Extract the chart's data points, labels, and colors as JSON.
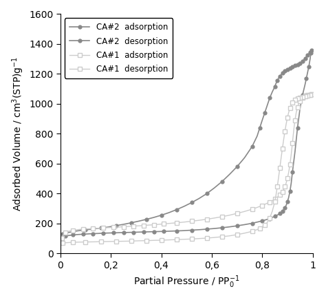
{
  "ca2_adsorption_x": [
    0.005,
    0.01,
    0.02,
    0.03,
    0.05,
    0.07,
    0.09,
    0.11,
    0.13,
    0.15,
    0.17,
    0.19,
    0.21,
    0.23,
    0.25,
    0.27,
    0.29,
    0.31,
    0.33,
    0.35,
    0.37,
    0.39,
    0.41,
    0.43,
    0.46,
    0.49,
    0.52,
    0.55,
    0.58,
    0.61,
    0.64,
    0.67,
    0.7,
    0.73,
    0.76,
    0.78,
    0.8,
    0.82,
    0.83,
    0.84,
    0.85,
    0.86,
    0.87,
    0.875,
    0.88,
    0.885,
    0.89,
    0.895,
    0.9,
    0.905,
    0.91,
    0.915,
    0.92,
    0.93,
    0.94,
    0.95,
    0.96,
    0.97,
    0.975,
    0.98,
    0.985,
    0.99,
    0.993,
    0.995
  ],
  "ca2_adsorption_y": [
    95,
    105,
    115,
    120,
    124,
    127,
    129,
    131,
    133,
    134,
    136,
    137,
    138,
    139,
    140,
    141,
    142,
    143,
    144,
    145,
    146,
    147,
    148,
    149,
    151,
    153,
    156,
    159,
    163,
    167,
    172,
    178,
    185,
    193,
    202,
    210,
    218,
    228,
    234,
    241,
    248,
    257,
    267,
    273,
    282,
    292,
    305,
    322,
    345,
    375,
    415,
    470,
    545,
    680,
    840,
    970,
    1060,
    1130,
    1170,
    1210,
    1250,
    1300,
    1340,
    1360
  ],
  "ca2_desorption_x": [
    0.995,
    0.993,
    0.99,
    0.985,
    0.98,
    0.975,
    0.97,
    0.965,
    0.96,
    0.955,
    0.95,
    0.945,
    0.94,
    0.935,
    0.93,
    0.925,
    0.92,
    0.915,
    0.91,
    0.905,
    0.9,
    0.895,
    0.89,
    0.885,
    0.88,
    0.875,
    0.87,
    0.865,
    0.86,
    0.855,
    0.85,
    0.84,
    0.83,
    0.82,
    0.81,
    0.8,
    0.79,
    0.78,
    0.76,
    0.73,
    0.7,
    0.67,
    0.64,
    0.61,
    0.58,
    0.55,
    0.52,
    0.49,
    0.46,
    0.43,
    0.4,
    0.37,
    0.34,
    0.31,
    0.28,
    0.25,
    0.22,
    0.19,
    0.16,
    0.13,
    0.1,
    0.07,
    0.05,
    0.03,
    0.01
  ],
  "ca2_desorption_y": [
    1360,
    1355,
    1345,
    1335,
    1325,
    1315,
    1305,
    1295,
    1285,
    1278,
    1272,
    1268,
    1264,
    1260,
    1256,
    1252,
    1248,
    1244,
    1240,
    1236,
    1231,
    1226,
    1220,
    1213,
    1205,
    1196,
    1185,
    1172,
    1156,
    1138,
    1115,
    1080,
    1040,
    990,
    940,
    890,
    838,
    785,
    715,
    640,
    580,
    528,
    480,
    438,
    400,
    368,
    340,
    315,
    293,
    273,
    256,
    241,
    228,
    216,
    205,
    195,
    186,
    177,
    170,
    164,
    158,
    152,
    146,
    140,
    130
  ],
  "ca1_adsorption_x": [
    0.005,
    0.01,
    0.02,
    0.03,
    0.05,
    0.07,
    0.09,
    0.11,
    0.13,
    0.15,
    0.17,
    0.19,
    0.21,
    0.23,
    0.25,
    0.27,
    0.29,
    0.31,
    0.33,
    0.35,
    0.37,
    0.39,
    0.41,
    0.43,
    0.46,
    0.49,
    0.52,
    0.55,
    0.58,
    0.61,
    0.64,
    0.67,
    0.7,
    0.73,
    0.76,
    0.78,
    0.8,
    0.82,
    0.83,
    0.84,
    0.85,
    0.86,
    0.87,
    0.875,
    0.88,
    0.885,
    0.89,
    0.895,
    0.9,
    0.905,
    0.91,
    0.915,
    0.92,
    0.925,
    0.93,
    0.935,
    0.94,
    0.945,
    0.95,
    0.955,
    0.96,
    0.965,
    0.97,
    0.975,
    0.98,
    0.985,
    0.99,
    0.993,
    0.995
  ],
  "ca1_adsorption_y": [
    105,
    120,
    138,
    148,
    155,
    160,
    163,
    165,
    167,
    169,
    171,
    173,
    175,
    177,
    179,
    181,
    183,
    185,
    187,
    190,
    192,
    195,
    198,
    201,
    205,
    210,
    216,
    222,
    229,
    237,
    246,
    256,
    268,
    281,
    296,
    308,
    321,
    336,
    344,
    353,
    364,
    376,
    391,
    400,
    413,
    428,
    447,
    471,
    502,
    542,
    595,
    661,
    740,
    822,
    891,
    942,
    978,
    1002,
    1018,
    1030,
    1040,
    1048,
    1054,
    1057,
    1059,
    1060,
    1061,
    1062,
    1062
  ],
  "ca1_desorption_x": [
    0.995,
    0.993,
    0.99,
    0.985,
    0.98,
    0.975,
    0.97,
    0.965,
    0.96,
    0.955,
    0.95,
    0.945,
    0.94,
    0.935,
    0.93,
    0.925,
    0.92,
    0.915,
    0.91,
    0.905,
    0.9,
    0.895,
    0.89,
    0.885,
    0.88,
    0.875,
    0.87,
    0.865,
    0.86,
    0.855,
    0.85,
    0.84,
    0.83,
    0.82,
    0.81,
    0.8,
    0.79,
    0.78,
    0.76,
    0.73,
    0.7,
    0.67,
    0.64,
    0.61,
    0.58,
    0.55,
    0.52,
    0.49,
    0.46,
    0.43,
    0.4,
    0.37,
    0.34,
    0.31,
    0.28,
    0.25,
    0.22,
    0.19,
    0.16,
    0.13,
    0.1,
    0.07,
    0.05,
    0.03,
    0.01
  ],
  "ca1_desorption_y": [
    1062,
    1060,
    1058,
    1056,
    1054,
    1052,
    1050,
    1048,
    1046,
    1044,
    1042,
    1040,
    1038,
    1034,
    1028,
    1020,
    1008,
    992,
    970,
    943,
    908,
    865,
    815,
    760,
    700,
    638,
    573,
    509,
    448,
    393,
    345,
    282,
    238,
    207,
    190,
    178,
    168,
    160,
    148,
    136,
    126,
    118,
    112,
    107,
    103,
    100,
    97,
    95,
    93,
    91,
    89,
    88,
    86,
    85,
    83,
    82,
    81,
    80,
    79,
    78,
    77,
    76,
    75,
    73,
    71
  ],
  "color_ca2_dark": "#888888",
  "color_ca2_light": "#aaaaaa",
  "color_ca1_dark": "#bbbbbb",
  "color_ca1_light": "#cccccc",
  "xlabel": "Partial Pressure / PP$_0^{-1}$",
  "ylabel": "Adsorbed Volume / cm$^3$(STP)g$^{-1}$",
  "xlim": [
    0,
    1.0
  ],
  "ylim": [
    0,
    1600
  ],
  "xticks": [
    0.0,
    0.2,
    0.4,
    0.6,
    0.8,
    1.0
  ],
  "xticklabels": [
    "0",
    "0,2",
    "0,4",
    "0,6",
    "0,8",
    "1"
  ],
  "yticks": [
    0,
    200,
    400,
    600,
    800,
    1000,
    1200,
    1400,
    1600
  ],
  "legend_labels": [
    "CA#2  adsorption",
    "CA#2  desorption",
    "CA#1  adsorption",
    "CA#1  desorption"
  ]
}
